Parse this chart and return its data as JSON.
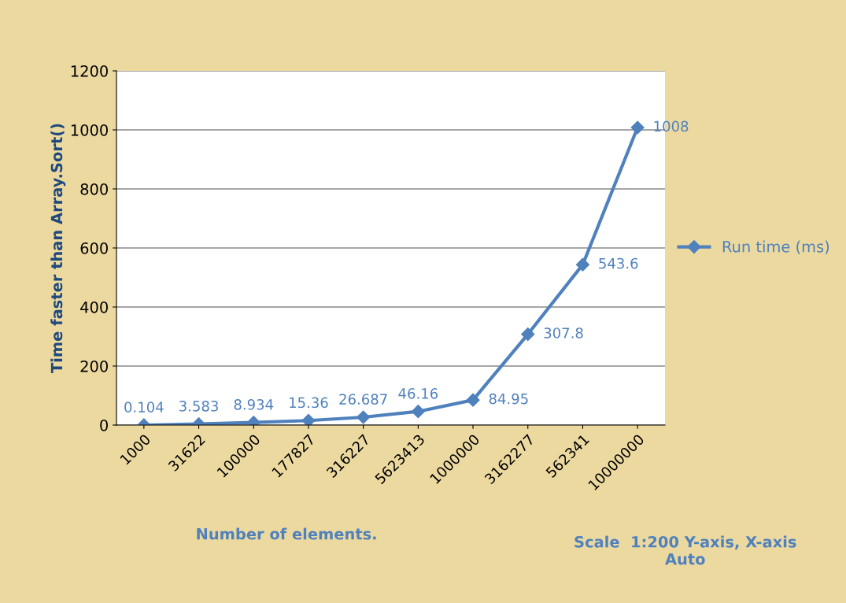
{
  "chart_data": {
    "type": "line",
    "ylabel": "Time faster than Array.Sort()",
    "xlabel": "Number of elements.",
    "annotations": [
      "Scale  1:200 Y-axis, X-axis\nAuto"
    ],
    "categories": [
      "1000",
      "31622",
      "100000",
      "177827",
      "316227",
      "5623413",
      "1000000",
      "3162277",
      "562341",
      "10000000"
    ],
    "series": [
      {
        "name": "Run time (ms)",
        "color": "#4f81bd",
        "values": [
          0.104,
          3.583,
          8.934,
          15.36,
          26.687,
          46.16,
          84.95,
          307.8,
          543.6,
          1008
        ]
      }
    ],
    "ylim": [
      0,
      1200
    ],
    "yticks": [
      0,
      200,
      400,
      600,
      800,
      1000,
      1200
    ],
    "grid": "y",
    "legend": "right",
    "marker": "diamond",
    "line_style": "solid",
    "data_labels": true
  }
}
